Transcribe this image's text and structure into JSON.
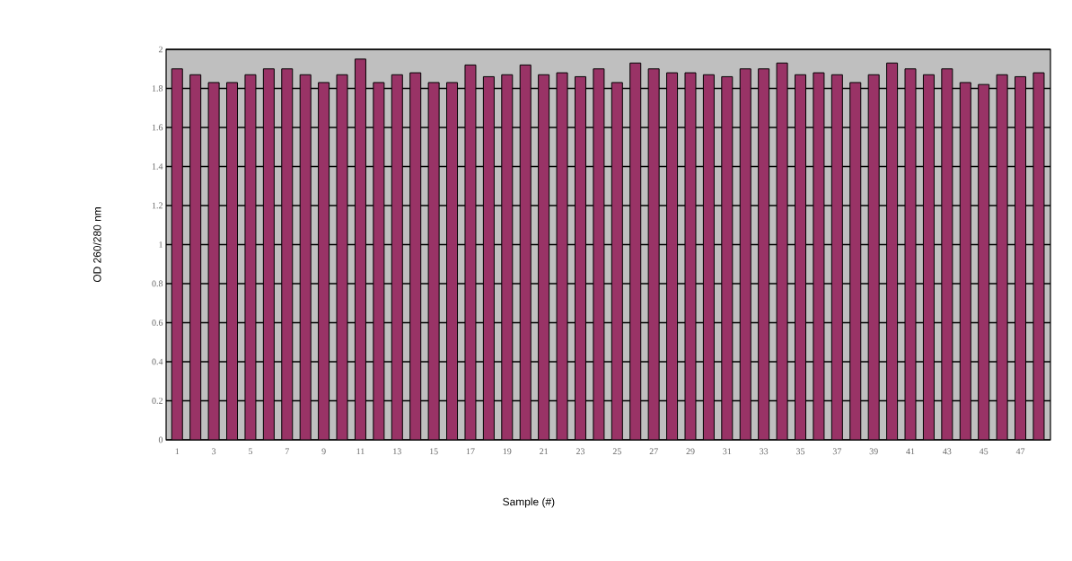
{
  "chart_data": {
    "type": "bar",
    "xlabel": "Sample (#)",
    "ylabel": "OD 260/280 nm",
    "categories": [
      "1",
      null,
      "3",
      null,
      "5",
      null,
      "7",
      null,
      "9",
      null,
      "11",
      null,
      "13",
      null,
      "15",
      null,
      "17",
      null,
      "19",
      null,
      "21",
      null,
      "23",
      null,
      "25",
      null,
      "27",
      null,
      "29",
      null,
      "31",
      null,
      "33",
      null,
      "35",
      null,
      "37",
      null,
      "39",
      null,
      "41",
      null,
      "43",
      null,
      "45",
      null,
      "47",
      null
    ],
    "values": [
      1.9,
      1.87,
      1.83,
      1.83,
      1.87,
      1.9,
      1.9,
      1.87,
      1.83,
      1.87,
      1.95,
      1.83,
      1.87,
      1.88,
      1.83,
      1.83,
      1.92,
      1.86,
      1.87,
      1.92,
      1.87,
      1.88,
      1.86,
      1.9,
      1.83,
      1.93,
      1.9,
      1.88,
      1.88,
      1.87,
      1.86,
      1.9,
      1.9,
      1.93,
      1.87,
      1.88,
      1.87,
      1.83,
      1.87,
      1.93,
      1.9,
      1.87,
      1.9,
      1.83,
      1.82,
      1.87,
      1.86,
      1.88
    ],
    "color": "#993366",
    "ylim": [
      0,
      2
    ],
    "yticks": [
      0,
      {
        "value": 0.2,
        "label": "0.2"
      },
      {
        "value": 0.4,
        "label": "0.4"
      },
      {
        "value": 0.6,
        "label": "0.6"
      },
      {
        "value": 0.8,
        "label": "0.8"
      },
      1,
      {
        "value": 1.2,
        "label": "1.2"
      },
      {
        "value": 1.4,
        "label": "1.4"
      },
      {
        "value": 1.6,
        "label": "1.6"
      },
      {
        "value": 1.8,
        "label": "1.8"
      },
      2
    ],
    "grid": "y"
  }
}
